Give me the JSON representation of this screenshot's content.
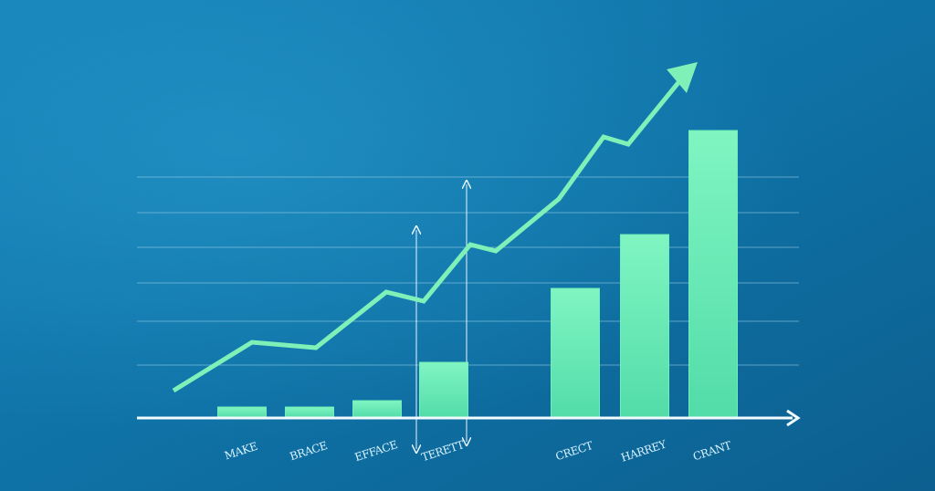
{
  "chart_data": {
    "type": "bar",
    "categories": [
      "MAKE",
      "BRACE",
      "EFFACE",
      "TERETT",
      "CRECT",
      "HARREY",
      "CRANT"
    ],
    "values": [
      12,
      12,
      19,
      61,
      142,
      201,
      315
    ],
    "color": "#6ff0b8",
    "ylim": [
      0,
      330
    ]
  }
}
